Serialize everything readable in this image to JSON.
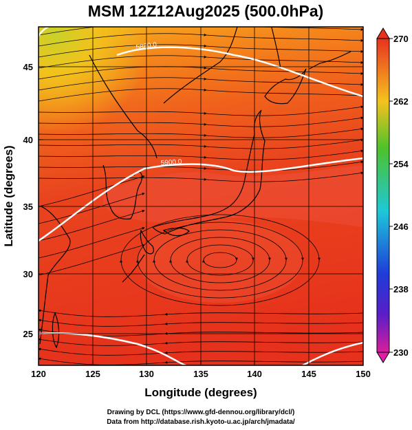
{
  "title": "MSM 12Z12Aug2025 (500.0hPa)",
  "x_axis": {
    "label": "Longitude (degrees)",
    "ticks": [
      "120",
      "125",
      "130",
      "135",
      "140",
      "145",
      "150"
    ]
  },
  "y_axis": {
    "label": "Latitude  (degrees)",
    "ticks": [
      "25",
      "30",
      "35",
      "40",
      "45"
    ]
  },
  "colorbar": {
    "ticks": [
      "270",
      "262",
      "254",
      "246",
      "238",
      "230"
    ]
  },
  "contours": [
    {
      "label": "5880.0",
      "value": 5880
    },
    {
      "label": "5900.0",
      "value": 5900
    }
  ],
  "credits": {
    "line1": "Drawing by DCL (https://www.gfd-dennou.org/library/dcl/)",
    "line2": "Data from http://database.rish.kyoto-u.ac.jp/arch/jmadata/"
  },
  "chart_data": {
    "type": "heatmap",
    "title": "MSM 12Z12Aug2025 (500.0hPa)",
    "xlabel": "Longitude (degrees)",
    "ylabel": "Latitude  (degrees)",
    "xlim": [
      120,
      150
    ],
    "ylim": [
      22.4,
      47.6
    ],
    "color_range": [
      230,
      270
    ],
    "colorbar_ticks": [
      270,
      262,
      254,
      246,
      238,
      230
    ],
    "overlays": [
      "streamlines",
      "coastlines",
      "height contours 5880, 5900"
    ],
    "colors": {
      "high": "#e8321e",
      "mid": "#f07a1e",
      "low": "#f5c21e",
      "cold": "#9ad12a"
    }
  }
}
